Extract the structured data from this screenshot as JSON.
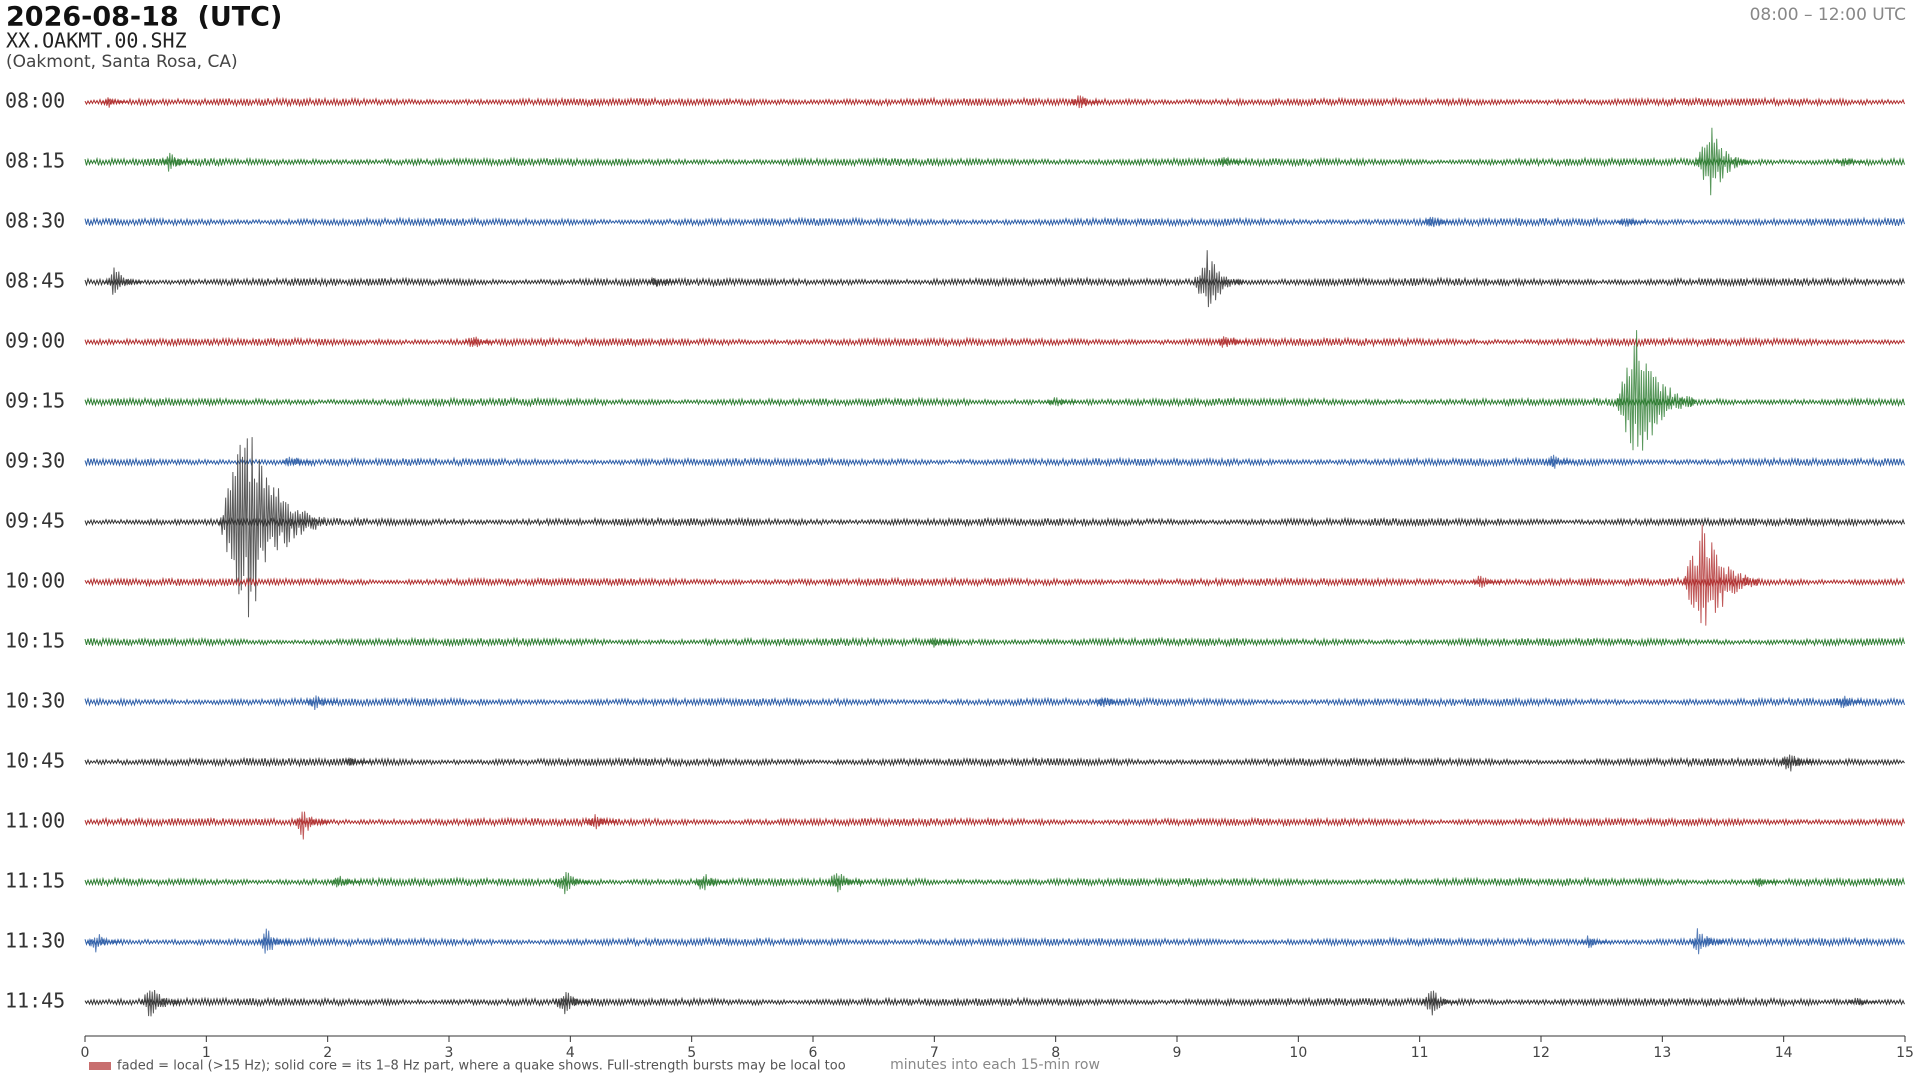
{
  "chart_data": {
    "type": "helicorder",
    "title": "2026-08-18  (UTC)",
    "station": "XX.OAKMT.00.SHZ",
    "location": "(Oakmont, Santa Rosa, CA)",
    "range_label": "08:00 – 12:00 UTC",
    "xlabel": "minutes into each 15-min row",
    "legend_text": "faded = local (>15 Hz); solid core = its 1–8 Hz part, where a quake shows. Full-strength bursts may be local too",
    "legend_color": "#b03030",
    "xlim": [
      0,
      15
    ],
    "xticks": [
      0,
      1,
      2,
      3,
      4,
      5,
      6,
      7,
      8,
      9,
      10,
      11,
      12,
      13,
      14,
      15
    ],
    "rows": [
      {
        "label": "08:00",
        "color": "#b03030",
        "events": [
          {
            "x": 0.2,
            "amplitude": 0.1
          },
          {
            "x": 8.2,
            "amplitude": 0.15
          }
        ]
      },
      {
        "label": "08:15",
        "color": "#2e7d32",
        "events": [
          {
            "x": 0.7,
            "amplitude": 0.2
          },
          {
            "x": 9.4,
            "amplitude": 0.12
          },
          {
            "x": 13.4,
            "amplitude": 0.7
          },
          {
            "x": 14.5,
            "amplitude": 0.1
          }
        ]
      },
      {
        "label": "08:30",
        "color": "#2f5fa8",
        "events": [
          {
            "x": 11.1,
            "amplitude": 0.12
          },
          {
            "x": 12.7,
            "amplitude": 0.12
          }
        ]
      },
      {
        "label": "08:45",
        "color": "#333333",
        "events": [
          {
            "x": 0.25,
            "amplitude": 0.3
          },
          {
            "x": 4.7,
            "amplitude": 0.12
          },
          {
            "x": 9.25,
            "amplitude": 0.6
          }
        ]
      },
      {
        "label": "09:00",
        "color": "#b03030",
        "events": [
          {
            "x": 3.2,
            "amplitude": 0.15
          },
          {
            "x": 9.4,
            "amplitude": 0.15
          }
        ]
      },
      {
        "label": "09:15",
        "color": "#2e7d32",
        "events": [
          {
            "x": 8.0,
            "amplitude": 0.1
          },
          {
            "x": 12.8,
            "amplitude": 1.3
          }
        ]
      },
      {
        "label": "09:30",
        "color": "#2f5fa8",
        "events": [
          {
            "x": 1.7,
            "amplitude": 0.15
          },
          {
            "x": 12.1,
            "amplitude": 0.15
          }
        ]
      },
      {
        "label": "09:45",
        "color": "#333333",
        "events": [
          {
            "x": 1.35,
            "amplitude": 1.9
          }
        ]
      },
      {
        "label": "10:00",
        "color": "#b03030",
        "events": [
          {
            "x": 11.5,
            "amplitude": 0.15
          },
          {
            "x": 13.35,
            "amplitude": 1.2
          }
        ]
      },
      {
        "label": "10:15",
        "color": "#2e7d32",
        "events": [
          {
            "x": 7.0,
            "amplitude": 0.12
          }
        ]
      },
      {
        "label": "10:30",
        "color": "#2f5fa8",
        "events": [
          {
            "x": 1.9,
            "amplitude": 0.15
          },
          {
            "x": 8.4,
            "amplitude": 0.12
          },
          {
            "x": 14.5,
            "amplitude": 0.15
          }
        ]
      },
      {
        "label": "10:45",
        "color": "#333333",
        "events": [
          {
            "x": 2.2,
            "amplitude": 0.1
          },
          {
            "x": 14.05,
            "amplitude": 0.2
          }
        ]
      },
      {
        "label": "11:00",
        "color": "#b03030",
        "events": [
          {
            "x": 1.8,
            "amplitude": 0.3
          },
          {
            "x": 4.2,
            "amplitude": 0.15
          }
        ]
      },
      {
        "label": "11:15",
        "color": "#2e7d32",
        "events": [
          {
            "x": 2.1,
            "amplitude": 0.15
          },
          {
            "x": 3.95,
            "amplitude": 0.25
          },
          {
            "x": 5.1,
            "amplitude": 0.2
          },
          {
            "x": 6.2,
            "amplitude": 0.25
          },
          {
            "x": 13.8,
            "amplitude": 0.1
          }
        ]
      },
      {
        "label": "11:30",
        "color": "#2f5fa8",
        "events": [
          {
            "x": 0.1,
            "amplitude": 0.2
          },
          {
            "x": 1.5,
            "amplitude": 0.25
          },
          {
            "x": 12.4,
            "amplitude": 0.15
          },
          {
            "x": 13.3,
            "amplitude": 0.3
          }
        ]
      },
      {
        "label": "11:45",
        "color": "#333333",
        "events": [
          {
            "x": 0.55,
            "amplitude": 0.35
          },
          {
            "x": 3.95,
            "amplitude": 0.25
          },
          {
            "x": 11.1,
            "amplitude": 0.25
          },
          {
            "x": 14.6,
            "amplitude": 0.1
          }
        ]
      }
    ]
  }
}
